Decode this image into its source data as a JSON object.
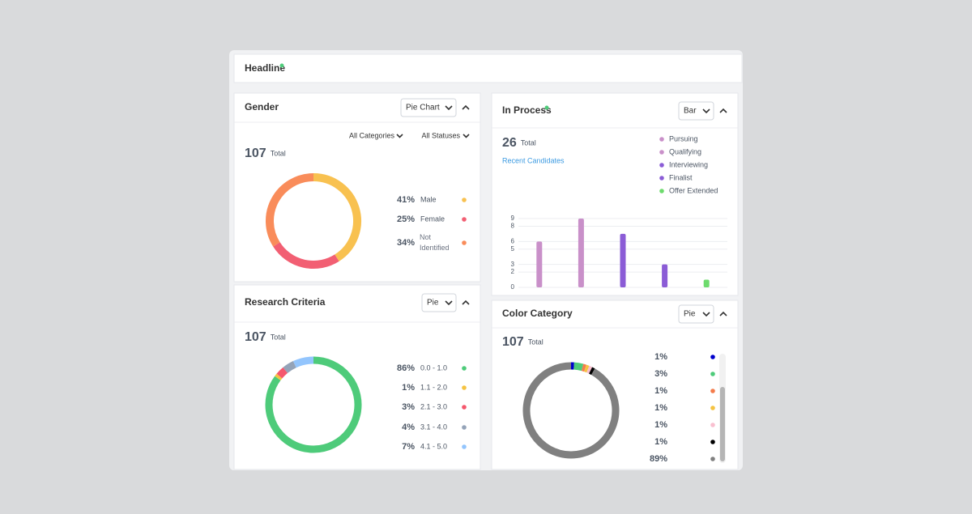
{
  "headline": "Headline",
  "gender": {
    "title": "Gender",
    "dropdown": "Pie Chart",
    "filters": [
      "All Categories",
      "All Statuses"
    ],
    "total": 107,
    "total_label": "Total",
    "chart": {
      "type": "donut",
      "categories": [
        "Male",
        "Female",
        "Not Identified"
      ],
      "values": [
        41,
        25,
        34
      ],
      "value_labels": [
        "41%",
        "25%",
        "34%"
      ],
      "colors": [
        "#f8c150",
        "#f25f73",
        "#f98c5a"
      ]
    }
  },
  "research": {
    "title": "Research Criteria",
    "dropdown": "Pie",
    "total": 107,
    "total_label": "Total",
    "chart": {
      "type": "donut",
      "categories": [
        "0.0 - 1.0",
        "1.1 - 2.0",
        "2.1 - 3.0",
        "3.1 - 4.0",
        "4.1 - 5.0"
      ],
      "values": [
        86,
        1,
        3,
        4,
        7
      ],
      "value_labels": [
        "86%",
        "1%",
        "3%",
        "4%",
        "7%"
      ],
      "colors": [
        "#4ecb7a",
        "#f5c342",
        "#f5576c",
        "#94a3b8",
        "#93c5fd"
      ]
    }
  },
  "in_process": {
    "title": "In Process",
    "dropdown": "Bar",
    "total": 26,
    "total_label": "Total",
    "link": "Recent Candidates",
    "chart": {
      "type": "bar",
      "categories": [
        "Pursuing",
        "Qualifying",
        "Interviewing",
        "Finalist",
        "Offer Extended"
      ],
      "values": [
        6,
        9,
        7,
        3,
        1
      ],
      "colors": [
        "#c990c9",
        "#c990c9",
        "#8b5cd6",
        "#8b5cd6",
        "#6ddb6d"
      ],
      "ylim": [
        0,
        9
      ],
      "yticks": [
        0,
        2,
        3,
        5,
        6,
        8,
        9
      ],
      "grid": true
    }
  },
  "color_category": {
    "title": "Color Category",
    "dropdown": "Pie",
    "total": 107,
    "total_label": "Total",
    "chart": {
      "type": "donut",
      "values": [
        1,
        3,
        1,
        1,
        1,
        1,
        89
      ],
      "value_labels": [
        "1%",
        "3%",
        "1%",
        "1%",
        "1%",
        "1%",
        "89%"
      ],
      "colors": [
        "#0000cc",
        "#4ecb7a",
        "#f47c4c",
        "#f5c342",
        "#f9c0d0",
        "#000000",
        "#808080"
      ]
    }
  }
}
